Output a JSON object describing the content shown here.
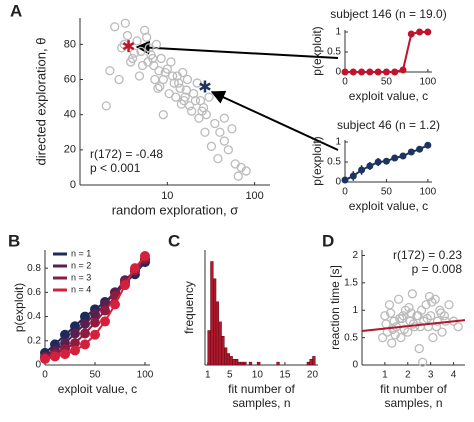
{
  "chart_data": [
    {
      "type": "scatter",
      "panel": "A",
      "xscale": "log",
      "xlabel": "random exploration, σ",
      "ylabel": "directed exploration, θ",
      "annotations": [
        "r(172) = -0.48",
        "p < 0.001"
      ],
      "xlim": [
        1,
        150
      ],
      "xticks": [
        10,
        100
      ],
      "ylim": [
        0,
        95
      ],
      "yticks": [
        0,
        20,
        40,
        60,
        80
      ],
      "color": "#bbbbbb",
      "x": [
        2.5,
        3,
        3.5,
        4,
        4.5,
        5,
        5.5,
        6,
        6.5,
        7,
        7.5,
        8,
        8.5,
        9,
        10,
        11,
        12,
        13,
        14,
        15,
        16,
        17,
        18,
        20,
        22,
        24,
        26,
        28,
        30,
        35,
        40,
        45,
        50,
        60,
        70,
        80,
        2,
        2.2,
        2.8,
        3.2,
        3.8,
        4.2,
        4.8,
        5.2,
        6.2,
        7.2,
        8.2,
        9.5,
        10.5,
        12.5,
        14.5,
        16.5,
        19,
        21,
        23,
        27,
        32,
        38,
        3.3,
        5.8,
        6.8,
        11.5,
        13.5,
        25,
        45,
        55,
        65,
        9,
        7.8,
        15.5
      ],
      "values": [
        90,
        78,
        85,
        72,
        82,
        76,
        88,
        70,
        74,
        68,
        80,
        65,
        72,
        60,
        66,
        70,
        58,
        62,
        55,
        64,
        50,
        60,
        45,
        52,
        58,
        48,
        44,
        40,
        50,
        35,
        30,
        38,
        20,
        12,
        10,
        8,
        45,
        65,
        60,
        80,
        70,
        75,
        62,
        68,
        78,
        60,
        56,
        64,
        52,
        50,
        46,
        54,
        42,
        48,
        38,
        30,
        22,
        15,
        92,
        84,
        72,
        62,
        58,
        42,
        25,
        32,
        5,
        40,
        55,
        48
      ],
      "highlights": [
        {
          "x": 3.6,
          "value": 79,
          "color": "#c0142c"
        },
        {
          "x": 27,
          "value": 56,
          "color": "#1d3461"
        }
      ]
    },
    {
      "type": "line",
      "title": "subject 146 (n = 19.0)",
      "xlabel": "exploit value, c",
      "ylabel": "p(exploit)",
      "xlim": [
        0,
        105
      ],
      "xticks": [
        0,
        50,
        100
      ],
      "ylim": [
        0,
        1.05
      ],
      "yticks": [
        0,
        0.5,
        1
      ],
      "x": [
        0,
        10,
        20,
        30,
        40,
        50,
        60,
        70,
        80,
        90,
        100
      ],
      "series": [
        {
          "color": "#c0142c",
          "values": [
            0,
            0,
            0,
            0,
            0,
            0,
            0,
            0.05,
            0.95,
            1,
            1
          ]
        }
      ]
    },
    {
      "type": "line",
      "title": "subject 46 (n = 1.2)",
      "xlabel": "exploit value, c",
      "ylabel": "p(exploit)",
      "xlim": [
        0,
        105
      ],
      "xticks": [
        0,
        50,
        100
      ],
      "ylim": [
        0,
        1.05
      ],
      "yticks": [
        0,
        0.5,
        1
      ],
      "x": [
        0,
        10,
        20,
        30,
        40,
        50,
        60,
        70,
        80,
        90,
        100
      ],
      "series": [
        {
          "color": "#1d3461",
          "values": [
            0.05,
            0.15,
            0.3,
            0.4,
            0.5,
            0.52,
            0.6,
            0.65,
            0.75,
            0.82,
            0.92
          ],
          "errors": [
            0.05,
            0.12,
            0.12,
            0.1,
            0.1,
            0.08,
            0.08,
            0.06,
            0.05,
            0.04,
            0.03
          ]
        }
      ]
    },
    {
      "type": "line",
      "panel": "B",
      "xlabel": "exploit value, c",
      "ylabel": "p(exploit)",
      "legend": "upper left",
      "xlim": [
        0,
        105
      ],
      "xticks": [
        0,
        50,
        100
      ],
      "ylim": [
        0,
        0.95
      ],
      "yticks": [
        0,
        0.2,
        0.4,
        0.6,
        0.8
      ],
      "x": [
        0,
        10,
        20,
        30,
        40,
        50,
        60,
        70,
        80,
        90,
        100
      ],
      "series": [
        {
          "name": "n = 1",
          "color": "#1f2a5a",
          "values": [
            0.1,
            0.17,
            0.25,
            0.32,
            0.4,
            0.46,
            0.52,
            0.6,
            0.68,
            0.75,
            0.85
          ]
        },
        {
          "name": "n = 2",
          "color": "#5a1f4e",
          "values": [
            0.07,
            0.12,
            0.18,
            0.26,
            0.34,
            0.42,
            0.5,
            0.6,
            0.7,
            0.78,
            0.87
          ]
        },
        {
          "name": "n = 3",
          "color": "#8e1c3e",
          "values": [
            0.06,
            0.09,
            0.13,
            0.18,
            0.26,
            0.35,
            0.45,
            0.57,
            0.68,
            0.78,
            0.88
          ]
        },
        {
          "name": "n = 4",
          "color": "#d4203c",
          "values": [
            0.05,
            0.07,
            0.09,
            0.12,
            0.17,
            0.25,
            0.36,
            0.5,
            0.66,
            0.8,
            0.9
          ]
        }
      ]
    },
    {
      "type": "histogram",
      "panel": "C",
      "xlabel": [
        "fit number of",
        "samples, n"
      ],
      "ylabel": "frequency",
      "color": "#b0182c",
      "xlim": [
        0.5,
        21
      ],
      "xticks": [
        1,
        5,
        10,
        15,
        20
      ],
      "ylim": [
        0,
        40
      ],
      "bins": [
        1,
        1.5,
        2,
        2.5,
        3,
        3.5,
        4,
        4.5,
        5,
        5.5,
        6,
        6.5,
        7,
        7.5,
        8,
        8.5,
        9,
        9.5,
        10,
        10.5,
        11,
        11.5,
        12,
        12.5,
        13,
        13.5,
        14,
        14.5,
        15,
        15.5,
        16,
        16.5,
        17,
        17.5,
        18,
        18.5,
        19,
        19.5,
        20,
        20.5
      ],
      "counts": [
        12,
        36,
        30,
        22,
        15,
        10,
        6,
        4,
        3,
        2,
        2,
        1,
        1,
        1,
        0,
        1,
        0,
        0,
        1,
        0,
        0,
        0,
        0,
        0,
        0,
        1,
        0,
        0,
        0,
        0,
        0,
        0,
        0,
        0,
        0,
        0,
        1,
        2,
        3
      ]
    },
    {
      "type": "scatter",
      "panel": "D",
      "xlabel": [
        "fit number of",
        "samples, n"
      ],
      "ylabel": "reaction time [s]",
      "annotations": [
        "r(172) = 0.23",
        "p = 0.008"
      ],
      "color": "#bbbbbb",
      "xlim": [
        0,
        4.5
      ],
      "xticks": [
        1,
        2,
        3,
        4
      ],
      "ylim": [
        0,
        2.1
      ],
      "yticks": [
        0,
        0.5,
        1,
        1.5,
        2
      ],
      "x": [
        1,
        1.1,
        1.2,
        1.3,
        1.4,
        1.5,
        1.6,
        1.7,
        1.8,
        1.9,
        2,
        2.1,
        2.2,
        2.3,
        2.4,
        2.5,
        2.6,
        2.7,
        2.8,
        2.9,
        3,
        3.1,
        3.2,
        3.3,
        3.4,
        3.5,
        3.6,
        3.8,
        4,
        4.2,
        1.05,
        1.25,
        1.45,
        1.65,
        1.85,
        2.05,
        2.25,
        2.45,
        2.65,
        2.85,
        3.05,
        3.25,
        3.45,
        3.65,
        1.35,
        1.75,
        2.15,
        2.55,
        2.95,
        0.9
      ],
      "values": [
        0.9,
        0.6,
        1.1,
        0.4,
        0.8,
        0.7,
        1.2,
        0.5,
        0.9,
        1.0,
        0.6,
        0.8,
        1.3,
        0.7,
        0.9,
        0.3,
        1.0,
        0.8,
        1.1,
        0.7,
        0.9,
        0.5,
        1.2,
        0.8,
        1.0,
        0.6,
        0.9,
        1.1,
        0.8,
        0.7,
        0.75,
        0.95,
        0.55,
        0.85,
        0.65,
        1.05,
        0.75,
        0.9,
        0.05,
        0.85,
        1.15,
        0.7,
        0.95,
        0.8,
        0.65,
        0.85,
        0.95,
        0.7,
        1.25,
        0.5
      ],
      "fit": {
        "x": [
          0,
          4.5
        ],
        "values": [
          0.62,
          0.82
        ],
        "color": "#b0182c"
      }
    }
  ]
}
